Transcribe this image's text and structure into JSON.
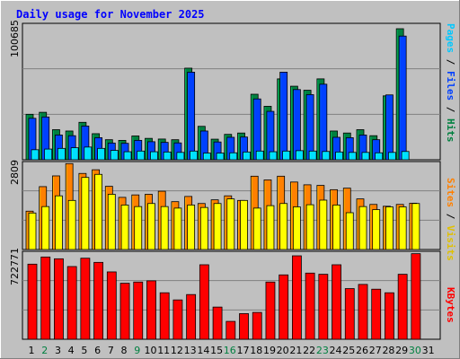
{
  "chart_data": [
    {
      "type": "bar",
      "title": "Daily usage for November 2025",
      "categories": [
        "1",
        "2",
        "3",
        "4",
        "5",
        "6",
        "7",
        "8",
        "9",
        "10",
        "11",
        "12",
        "13",
        "14",
        "15",
        "16",
        "17",
        "18",
        "19",
        "20",
        "21",
        "22",
        "23",
        "24",
        "25",
        "26",
        "27",
        "28",
        "29",
        "30",
        "31"
      ],
      "weekend_days": [
        "2",
        "9",
        "16",
        "23",
        "30"
      ],
      "ylabel_max": "100685",
      "ymax": 100685,
      "legend": [
        "Pages",
        "Files",
        "Hits"
      ],
      "series": [
        {
          "name": "Hits",
          "color": "#008040",
          "values": [
            34000,
            35500,
            22500,
            21500,
            28000,
            19500,
            15000,
            14500,
            17800,
            16000,
            15500,
            15000,
            68500,
            25000,
            15400,
            19000,
            20000,
            49000,
            40000,
            60500,
            55000,
            52000,
            60500,
            21500,
            20000,
            22500,
            18000,
            47800,
            98000,
            0,
            0
          ]
        },
        {
          "name": "Files",
          "color": "#0040ff",
          "values": [
            31000,
            32000,
            18500,
            18000,
            25200,
            16500,
            12500,
            12300,
            14500,
            13500,
            13000,
            12600,
            65500,
            21500,
            13300,
            16800,
            17000,
            45500,
            36200,
            65500,
            52500,
            48700,
            56500,
            16800,
            16500,
            18500,
            15000,
            48500,
            92500,
            0,
            0
          ]
        },
        {
          "name": "Pages",
          "color": "#00e0ff",
          "values": [
            7500,
            8000,
            8500,
            9000,
            9500,
            8500,
            7000,
            6000,
            6500,
            6000,
            5800,
            5500,
            6500,
            5000,
            5000,
            5200,
            5800,
            6500,
            6000,
            6500,
            6800,
            6500,
            6200,
            5800,
            5500,
            5500,
            5200,
            5500,
            6200,
            0,
            0
          ]
        }
      ]
    },
    {
      "type": "bar",
      "categories": [
        "1",
        "2",
        "3",
        "4",
        "5",
        "6",
        "7",
        "8",
        "9",
        "10",
        "11",
        "12",
        "13",
        "14",
        "15",
        "16",
        "17",
        "18",
        "19",
        "20",
        "21",
        "22",
        "23",
        "24",
        "25",
        "26",
        "27",
        "28",
        "29",
        "30",
        "31"
      ],
      "ylabel_max": "2809",
      "ymax": 2809,
      "legend": [
        "Sites",
        "Visits"
      ],
      "series": [
        {
          "name": "Visits",
          "color": "#ff8000",
          "values": [
            1250,
            2050,
            2400,
            2800,
            2480,
            2600,
            2060,
            1700,
            1780,
            1800,
            1900,
            1560,
            1730,
            1500,
            1620,
            1750,
            1600,
            2390,
            2270,
            2390,
            2200,
            2110,
            2090,
            1950,
            2000,
            1650,
            1470,
            1410,
            1470,
            1510,
            0
          ]
        },
        {
          "name": "Sites",
          "color": "#ffff00",
          "values": [
            1190,
            1400,
            1750,
            1600,
            2350,
            2450,
            1800,
            1450,
            1400,
            1500,
            1400,
            1350,
            1450,
            1370,
            1500,
            1650,
            1600,
            1350,
            1430,
            1500,
            1390,
            1460,
            1610,
            1450,
            1200,
            1400,
            1300,
            1390,
            1390,
            1500,
            0
          ]
        }
      ]
    },
    {
      "type": "bar",
      "categories": [
        "1",
        "2",
        "3",
        "4",
        "5",
        "6",
        "7",
        "8",
        "9",
        "10",
        "11",
        "12",
        "13",
        "14",
        "15",
        "16",
        "17",
        "18",
        "19",
        "20",
        "21",
        "22",
        "23",
        "24",
        "25",
        "26",
        "27",
        "28",
        "29",
        "30",
        "31"
      ],
      "ylabel_max": "722771",
      "ymax": 722771,
      "legend": [
        "KBytes"
      ],
      "series": [
        {
          "name": "KBytes",
          "color": "#ff0000",
          "values": [
            630000,
            690000,
            675000,
            610000,
            680000,
            645000,
            565000,
            470000,
            480000,
            490000,
            390000,
            330000,
            375000,
            625000,
            270000,
            150000,
            215000,
            225000,
            480000,
            540000,
            700000,
            555000,
            545000,
            625000,
            425000,
            460000,
            420000,
            390000,
            545000,
            718000,
            0
          ]
        }
      ]
    }
  ]
}
